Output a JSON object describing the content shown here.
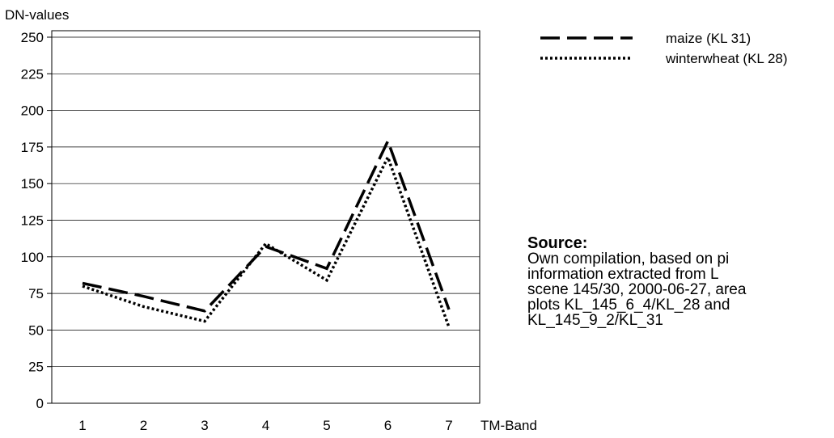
{
  "chart_data": {
    "type": "line",
    "ylabel": "DN-values",
    "xlabel": "TM-Band",
    "x": [
      1,
      2,
      3,
      4,
      5,
      6,
      7
    ],
    "xticks": [
      "1",
      "2",
      "3",
      "4",
      "5",
      "6",
      "7"
    ],
    "ylim": [
      0,
      250
    ],
    "yticks": [
      "0",
      "25",
      "50",
      "75",
      "100",
      "125",
      "150",
      "175",
      "200",
      "225",
      "250"
    ],
    "grid": "horizontal",
    "legend_position": "top-right, outside plot",
    "series": [
      {
        "name": "maize (KL 31)",
        "style": "dashed",
        "color": "#000000",
        "values": [
          82,
          73,
          63,
          107,
          92,
          179,
          64
        ]
      },
      {
        "name": "winterwheat (KL 28)",
        "style": "dotted",
        "color": "#000000",
        "values": [
          80,
          66,
          56,
          109,
          84,
          168,
          52
        ]
      }
    ]
  },
  "source": {
    "title": "Source:",
    "lines": [
      "Own compilation, based on pi",
      "information  extracted  from  L",
      "scene 145/30, 2000-06-27, area",
      "plots KL_145_6_4/KL_28 and",
      "KL_145_9_2/KL_31"
    ]
  }
}
